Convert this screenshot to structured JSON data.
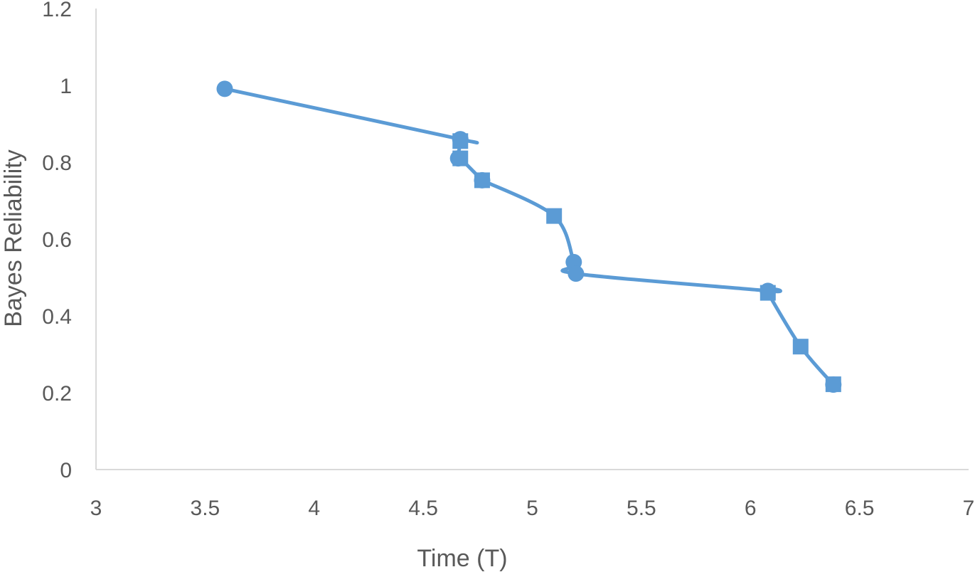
{
  "chart_data": {
    "type": "line",
    "xlabel": "Time (T)",
    "ylabel": "Bayes Reliability",
    "xlim": [
      3,
      7
    ],
    "ylim": [
      0,
      1.2
    ],
    "x_ticks": [
      "3",
      "3.5",
      "4",
      "4.5",
      "5",
      "5.5",
      "6",
      "6.5",
      "7"
    ],
    "y_ticks": [
      "0",
      "0.2",
      "0.4",
      "0.6",
      "0.8",
      "1",
      "1.2"
    ],
    "grid": false,
    "legend": "none",
    "smooth": true,
    "color": "#5b9bd5",
    "series": [
      {
        "points": [
          {
            "x": 3.59,
            "y": 0.991,
            "marker": "circle"
          },
          {
            "x": 4.67,
            "y": 0.86,
            "marker": "circle"
          },
          {
            "x": 4.67,
            "y": 0.855,
            "marker": "square"
          },
          {
            "x": 4.66,
            "y": 0.81,
            "marker": "circle"
          },
          {
            "x": 4.67,
            "y": 0.81,
            "marker": "square"
          },
          {
            "x": 4.77,
            "y": 0.753,
            "marker": "circle"
          },
          {
            "x": 4.77,
            "y": 0.753,
            "marker": "square"
          },
          {
            "x": 5.1,
            "y": 0.66,
            "marker": "square"
          },
          {
            "x": 5.19,
            "y": 0.54,
            "marker": "circle"
          },
          {
            "x": 5.2,
            "y": 0.51,
            "marker": "circle"
          },
          {
            "x": 6.08,
            "y": 0.465,
            "marker": "circle"
          },
          {
            "x": 6.08,
            "y": 0.46,
            "marker": "square"
          },
          {
            "x": 6.23,
            "y": 0.32,
            "marker": "square"
          },
          {
            "x": 6.38,
            "y": 0.221,
            "marker": "circle"
          },
          {
            "x": 6.38,
            "y": 0.222,
            "marker": "square"
          }
        ]
      }
    ]
  }
}
